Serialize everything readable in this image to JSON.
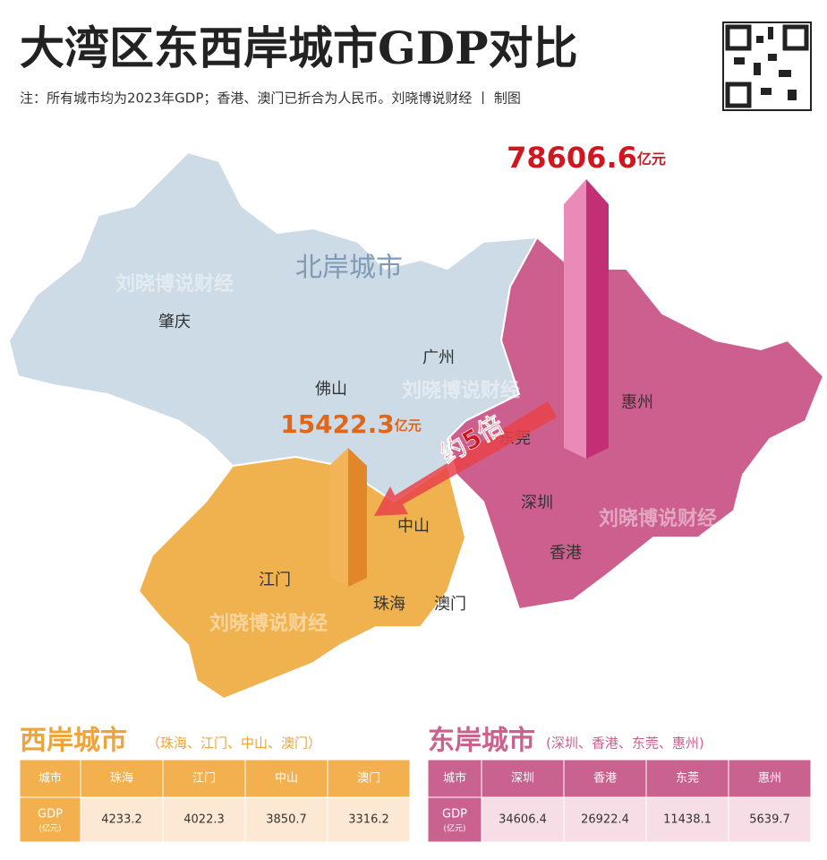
{
  "header": {
    "title": "大湾区东西岸城市GDP对比",
    "note": "注：所有城市均为2023年GDP；香港、澳门已折合为人民币。刘晓博说财经 丨 制图"
  },
  "map": {
    "region_label": "北岸城市",
    "watermark": "刘晓博说财经",
    "cities": [
      "肇庆",
      "广州",
      "佛山",
      "惠州",
      "东莞",
      "深圳",
      "香港",
      "中山",
      "江门",
      "珠海",
      "澳门"
    ]
  },
  "east_total": {
    "value": 78606.6,
    "unit": "亿元"
  },
  "west_total": {
    "value": 15422.3,
    "unit": "亿元"
  },
  "ratio_label": "约5倍",
  "west_table": {
    "title": "西岸城市",
    "subtitle": "（珠海、江门、中山、澳门）",
    "header": [
      "城市",
      "珠海",
      "江门",
      "中山",
      "澳门"
    ],
    "row_label": "GDP",
    "row_unit": "(亿元)",
    "values": [
      4233.2,
      4022.3,
      3850.7,
      3316.2
    ]
  },
  "east_table": {
    "title": "东岸城市",
    "subtitle": "(深圳、香港、东莞、惠州)",
    "header": [
      "城市",
      "深圳",
      "香港",
      "东莞",
      "惠州"
    ],
    "row_label": "GDP",
    "row_unit": "(亿元)",
    "values": [
      34606.4,
      26922.4,
      11438.1,
      5639.7
    ]
  }
}
